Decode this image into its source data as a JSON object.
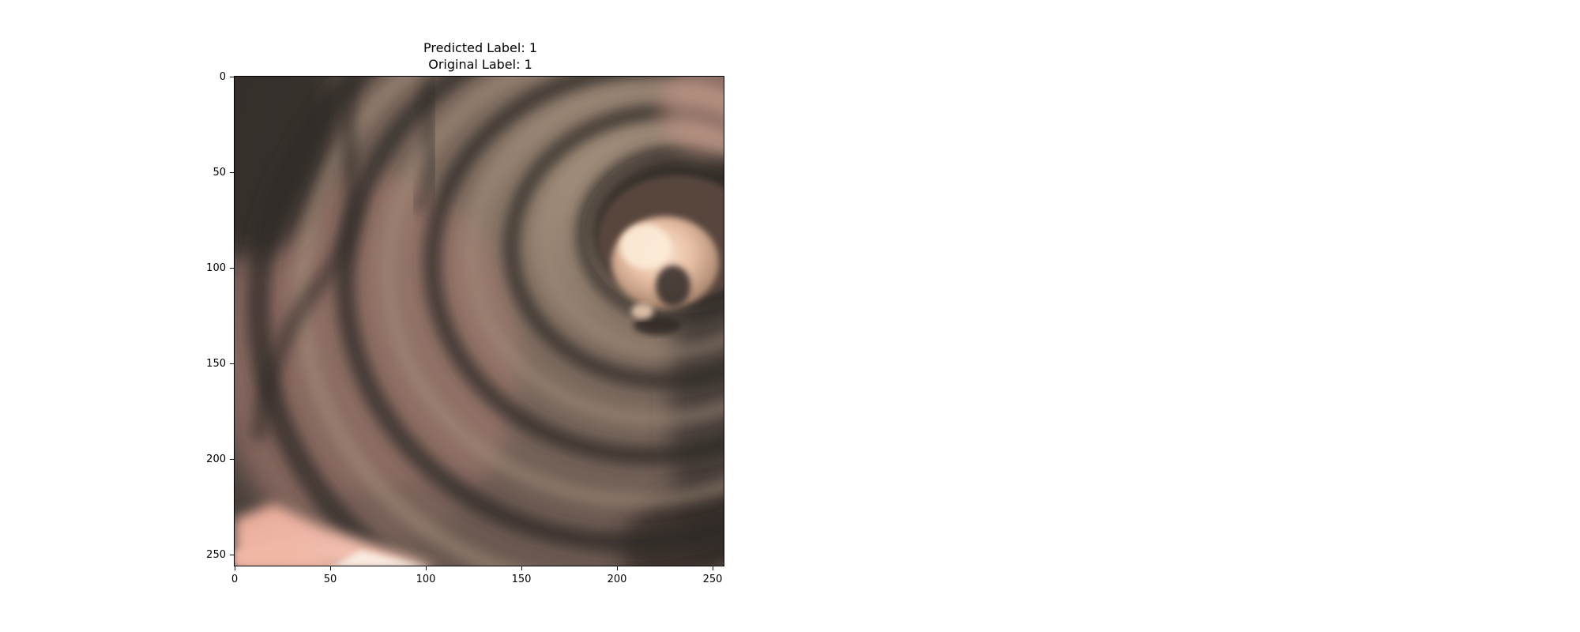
{
  "figure": {
    "title_line1": "Predicted Label: 1",
    "title_line2": "Original Label: 1"
  },
  "y_ticks": [
    "0",
    "50",
    "100",
    "150",
    "200",
    "250"
  ],
  "x_ticks": [
    "0",
    "50",
    "100",
    "150",
    "200",
    "250"
  ],
  "image": {
    "subject": "endoscopic colon lumen view",
    "palette": {
      "dark": "#3e3a36",
      "mid": "#7a6a5e",
      "pink": "#b8847a",
      "light": "#f5d2bd"
    }
  }
}
